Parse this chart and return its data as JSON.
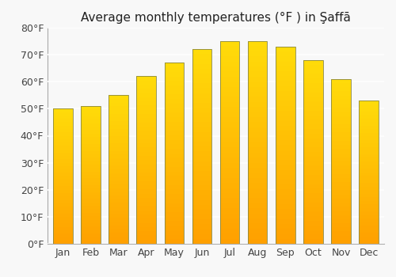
{
  "title": "Average monthly temperatures (°F ) in Şaffā",
  "months": [
    "Jan",
    "Feb",
    "Mar",
    "Apr",
    "May",
    "Jun",
    "Jul",
    "Aug",
    "Sep",
    "Oct",
    "Nov",
    "Dec"
  ],
  "values": [
    50,
    51,
    55,
    62,
    67,
    72,
    75,
    75,
    73,
    68,
    61,
    53
  ],
  "ylim": [
    0,
    80
  ],
  "yticks": [
    0,
    10,
    20,
    30,
    40,
    50,
    60,
    70,
    80
  ],
  "ytick_labels": [
    "0°F",
    "10°F",
    "20°F",
    "30°F",
    "40°F",
    "50°F",
    "60°F",
    "70°F",
    "80°F"
  ],
  "bar_color_top": "#FFD966",
  "bar_color_bottom": "#F0A000",
  "bar_edge_color": "#888844",
  "background_color": "#f8f8f8",
  "plot_bg_color": "#f8f8f8",
  "grid_color": "#ffffff",
  "title_fontsize": 11,
  "tick_fontsize": 9,
  "bar_width": 0.7
}
